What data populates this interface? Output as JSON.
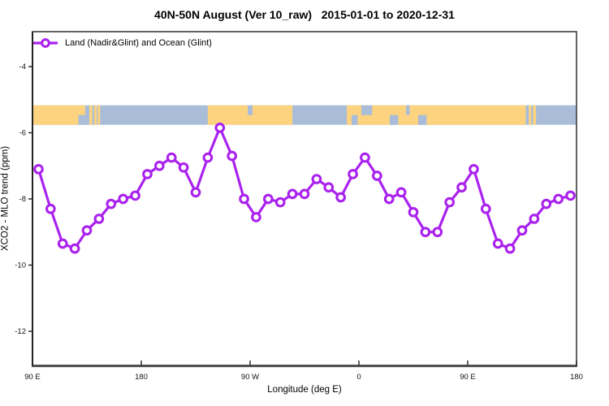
{
  "title": "40N-50N August (Ver 10_raw)   2015-01-01 to 2020-12-31",
  "legend": {
    "label": "Land (Nadir&Glint) and Ocean (Glint)",
    "symbol": "line-with-open-circle",
    "color": "#aa22ee"
  },
  "axes": {
    "x": {
      "label": "Longitude (deg E)",
      "ticks": [
        {
          "label": "90 E",
          "deg_unwrapped": 90
        },
        {
          "label": "180",
          "deg_unwrapped": 180
        },
        {
          "label": "90 W",
          "deg_unwrapped": 270
        },
        {
          "label": "0",
          "deg_unwrapped": 360
        },
        {
          "label": "90 E",
          "deg_unwrapped": 450
        },
        {
          "label": "180",
          "deg_unwrapped": 540
        }
      ]
    },
    "y": {
      "label": "XCO2 - MLO trend (ppm)",
      "tick_labels": [
        "-4",
        "-6",
        "-8",
        "-10",
        "-12"
      ],
      "tick_values": [
        -4,
        -6,
        -8,
        -10,
        -12
      ]
    }
  },
  "chart_data": {
    "type": "line",
    "title": "40N-50N August (Ver 10_raw)   2015-01-01 to 2020-12-31",
    "xlabel": "Longitude (deg E)",
    "ylabel": "XCO2 - MLO trend (ppm)",
    "xlim_deg_unwrapped": [
      90,
      540
    ],
    "ylim": [
      -13.0,
      -2.95
    ],
    "x_axis_wraps_dateline": true,
    "grid": false,
    "legend_position": "top-left-inside",
    "series": [
      {
        "name": "Land (Nadir&Glint) and Ocean (Glint)",
        "color": "#aa22ee",
        "marker": "open-circle",
        "x_deg_unwrapped": [
          95,
          105,
          115,
          125,
          135,
          145,
          155,
          165,
          175,
          185,
          195,
          205,
          215,
          225,
          235,
          245,
          255,
          265,
          275,
          285,
          295,
          305,
          315,
          325,
          335,
          345,
          355,
          365,
          375,
          385,
          395,
          405,
          415,
          425,
          435,
          445,
          455,
          465,
          475,
          485,
          495,
          505,
          515,
          525,
          535
        ],
        "x_longitude_labels": [
          "95E",
          "105E",
          "115E",
          "125E",
          "135E",
          "145E",
          "155E",
          "165E",
          "175E",
          "175W",
          "165W",
          "155W",
          "145W",
          "135W",
          "125W",
          "115W",
          "105W",
          "95W",
          "85W",
          "75W",
          "65W",
          "55W",
          "45W",
          "35W",
          "25W",
          "15W",
          "5W",
          "5E",
          "15E",
          "25E",
          "35E",
          "45E",
          "55E",
          "65E",
          "75E",
          "85E",
          "95E",
          "105E",
          "115E",
          "125E",
          "135E",
          "145E",
          "155E",
          "165E",
          "175E"
        ],
        "values": [
          -7.1,
          -8.3,
          -9.35,
          -9.5,
          -8.95,
          -8.6,
          -8.15,
          -8.0,
          -7.9,
          -7.25,
          -7.0,
          -6.75,
          -7.05,
          -7.8,
          -6.75,
          -5.85,
          -6.7,
          -8.0,
          -8.55,
          -8.0,
          -8.1,
          -7.85,
          -7.85,
          -7.4,
          -7.65,
          -7.95,
          -7.25,
          -6.75,
          -7.3,
          -8.0,
          -7.8,
          -8.4,
          -9.0,
          -9.0,
          -8.1,
          -7.65,
          -7.1,
          -8.3,
          -9.35,
          -9.5,
          -8.95,
          -8.6,
          -8.15,
          -8.0,
          -7.9
        ]
      }
    ],
    "map_band": {
      "description": "coastline strip showing land vs ocean along 40N-50N",
      "value_top": -5.17,
      "value_bottom": -5.76,
      "ocean_color": "#a9bdd9",
      "land_color": "#fdd37f",
      "land_segments_deg_unwrapped": [
        [
          90,
          133.5
        ],
        [
          137,
          139.5
        ],
        [
          141,
          143.2
        ],
        [
          144,
          146
        ],
        [
          235,
          305
        ],
        [
          350,
          498
        ],
        [
          500.5,
          502.5
        ],
        [
          504,
          506.5
        ]
      ],
      "ocean_patches_deg_unwrapped": [
        {
          "from": 128,
          "to": 133.5,
          "part": "bottom"
        },
        {
          "from": 268,
          "to": 272,
          "part": "top"
        },
        {
          "from": 354,
          "to": 359,
          "part": "bottom"
        },
        {
          "from": 362,
          "to": 371,
          "part": "top"
        },
        {
          "from": 385.5,
          "to": 392.5,
          "part": "bottom"
        },
        {
          "from": 399,
          "to": 402,
          "part": "top"
        },
        {
          "from": 409,
          "to": 416,
          "part": "bottom"
        }
      ]
    }
  },
  "style": {
    "frame_color": "#3d3d3d",
    "axis_color": "#4a4a4a",
    "tick_text_color": "#111111",
    "background": "#ffffff"
  }
}
